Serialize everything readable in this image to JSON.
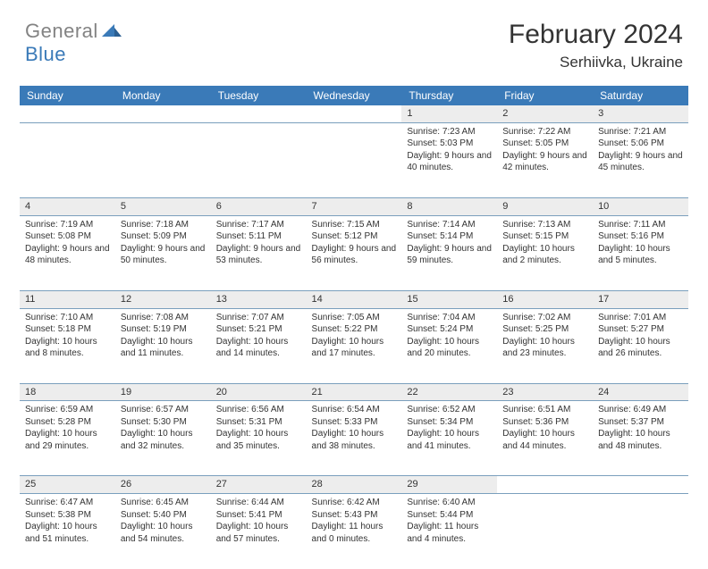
{
  "brand": {
    "part1": "General",
    "part2": "Blue"
  },
  "title": "February 2024",
  "location": "Serhiivka, Ukraine",
  "colors": {
    "header_bg": "#3a7ab8",
    "header_text": "#ffffff",
    "daynum_bg": "#ededed",
    "border": "#7a9fbd",
    "body_text": "#333333",
    "logo_gray": "#838383",
    "logo_blue": "#3a7ab8",
    "background": "#ffffff"
  },
  "typography": {
    "title_fontsize": 30,
    "location_fontsize": 17,
    "header_fontsize": 12,
    "cell_fontsize": 10,
    "daynum_fontsize": 11
  },
  "columns": [
    "Sunday",
    "Monday",
    "Tuesday",
    "Wednesday",
    "Thursday",
    "Friday",
    "Saturday"
  ],
  "weeks": [
    {
      "nums": [
        "",
        "",
        "",
        "",
        "1",
        "2",
        "3"
      ],
      "cells": [
        null,
        null,
        null,
        null,
        {
          "sunrise": "7:23 AM",
          "sunset": "5:03 PM",
          "daylight": "9 hours and 40 minutes."
        },
        {
          "sunrise": "7:22 AM",
          "sunset": "5:05 PM",
          "daylight": "9 hours and 42 minutes."
        },
        {
          "sunrise": "7:21 AM",
          "sunset": "5:06 PM",
          "daylight": "9 hours and 45 minutes."
        }
      ]
    },
    {
      "nums": [
        "4",
        "5",
        "6",
        "7",
        "8",
        "9",
        "10"
      ],
      "cells": [
        {
          "sunrise": "7:19 AM",
          "sunset": "5:08 PM",
          "daylight": "9 hours and 48 minutes."
        },
        {
          "sunrise": "7:18 AM",
          "sunset": "5:09 PM",
          "daylight": "9 hours and 50 minutes."
        },
        {
          "sunrise": "7:17 AM",
          "sunset": "5:11 PM",
          "daylight": "9 hours and 53 minutes."
        },
        {
          "sunrise": "7:15 AM",
          "sunset": "5:12 PM",
          "daylight": "9 hours and 56 minutes."
        },
        {
          "sunrise": "7:14 AM",
          "sunset": "5:14 PM",
          "daylight": "9 hours and 59 minutes."
        },
        {
          "sunrise": "7:13 AM",
          "sunset": "5:15 PM",
          "daylight": "10 hours and 2 minutes."
        },
        {
          "sunrise": "7:11 AM",
          "sunset": "5:16 PM",
          "daylight": "10 hours and 5 minutes."
        }
      ]
    },
    {
      "nums": [
        "11",
        "12",
        "13",
        "14",
        "15",
        "16",
        "17"
      ],
      "cells": [
        {
          "sunrise": "7:10 AM",
          "sunset": "5:18 PM",
          "daylight": "10 hours and 8 minutes."
        },
        {
          "sunrise": "7:08 AM",
          "sunset": "5:19 PM",
          "daylight": "10 hours and 11 minutes."
        },
        {
          "sunrise": "7:07 AM",
          "sunset": "5:21 PM",
          "daylight": "10 hours and 14 minutes."
        },
        {
          "sunrise": "7:05 AM",
          "sunset": "5:22 PM",
          "daylight": "10 hours and 17 minutes."
        },
        {
          "sunrise": "7:04 AM",
          "sunset": "5:24 PM",
          "daylight": "10 hours and 20 minutes."
        },
        {
          "sunrise": "7:02 AM",
          "sunset": "5:25 PM",
          "daylight": "10 hours and 23 minutes."
        },
        {
          "sunrise": "7:01 AM",
          "sunset": "5:27 PM",
          "daylight": "10 hours and 26 minutes."
        }
      ]
    },
    {
      "nums": [
        "18",
        "19",
        "20",
        "21",
        "22",
        "23",
        "24"
      ],
      "cells": [
        {
          "sunrise": "6:59 AM",
          "sunset": "5:28 PM",
          "daylight": "10 hours and 29 minutes."
        },
        {
          "sunrise": "6:57 AM",
          "sunset": "5:30 PM",
          "daylight": "10 hours and 32 minutes."
        },
        {
          "sunrise": "6:56 AM",
          "sunset": "5:31 PM",
          "daylight": "10 hours and 35 minutes."
        },
        {
          "sunrise": "6:54 AM",
          "sunset": "5:33 PM",
          "daylight": "10 hours and 38 minutes."
        },
        {
          "sunrise": "6:52 AM",
          "sunset": "5:34 PM",
          "daylight": "10 hours and 41 minutes."
        },
        {
          "sunrise": "6:51 AM",
          "sunset": "5:36 PM",
          "daylight": "10 hours and 44 minutes."
        },
        {
          "sunrise": "6:49 AM",
          "sunset": "5:37 PM",
          "daylight": "10 hours and 48 minutes."
        }
      ]
    },
    {
      "nums": [
        "25",
        "26",
        "27",
        "28",
        "29",
        "",
        ""
      ],
      "cells": [
        {
          "sunrise": "6:47 AM",
          "sunset": "5:38 PM",
          "daylight": "10 hours and 51 minutes."
        },
        {
          "sunrise": "6:45 AM",
          "sunset": "5:40 PM",
          "daylight": "10 hours and 54 minutes."
        },
        {
          "sunrise": "6:44 AM",
          "sunset": "5:41 PM",
          "daylight": "10 hours and 57 minutes."
        },
        {
          "sunrise": "6:42 AM",
          "sunset": "5:43 PM",
          "daylight": "11 hours and 0 minutes."
        },
        {
          "sunrise": "6:40 AM",
          "sunset": "5:44 PM",
          "daylight": "11 hours and 4 minutes."
        },
        null,
        null
      ]
    }
  ],
  "labels": {
    "sunrise": "Sunrise: ",
    "sunset": "Sunset: ",
    "daylight": "Daylight: "
  }
}
